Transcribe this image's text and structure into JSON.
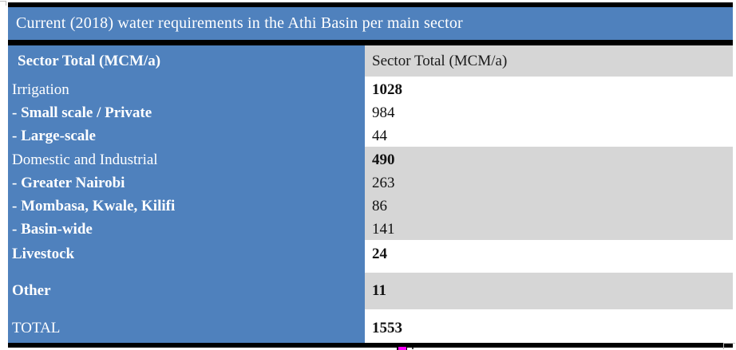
{
  "table": {
    "title": "Current (2018) water requirements in the Athi Basin per main sector",
    "header": {
      "sector": "Sector Total (MCM/a)",
      "value": "Sector Total (MCM/a)"
    },
    "groups": [
      {
        "name": "Irrigation",
        "rows": [
          {
            "label": "Irrigation",
            "value": "1028"
          },
          {
            "label": "- Small scale / Private",
            "value": "984"
          },
          {
            "label": "- Large-scale",
            "value": "44"
          }
        ]
      },
      {
        "name": "Domestic and Industrial",
        "rows": [
          {
            "label": "Domestic and Industrial",
            "value": "490"
          },
          {
            "label": "- Greater Nairobi",
            "value": "263"
          },
          {
            "label": "- Mombasa, Kwale, Kilifi",
            "value": "86"
          },
          {
            "label": "- Basin-wide",
            "value": "141"
          }
        ]
      },
      {
        "name": "Livestock",
        "rows": [
          {
            "label": "Livestock",
            "value": "24"
          }
        ]
      },
      {
        "name": "Other",
        "rows": [
          {
            "label": "Other",
            "value": "11"
          }
        ]
      },
      {
        "name": "TOTAL",
        "rows": [
          {
            "label": "TOTAL",
            "value": "1553"
          }
        ]
      }
    ],
    "colors": {
      "accent_blue": "#4f81bd",
      "row_gray": "#d6d6d6",
      "border_black": "#000000",
      "artifact_magenta": "#ff00ff"
    }
  }
}
